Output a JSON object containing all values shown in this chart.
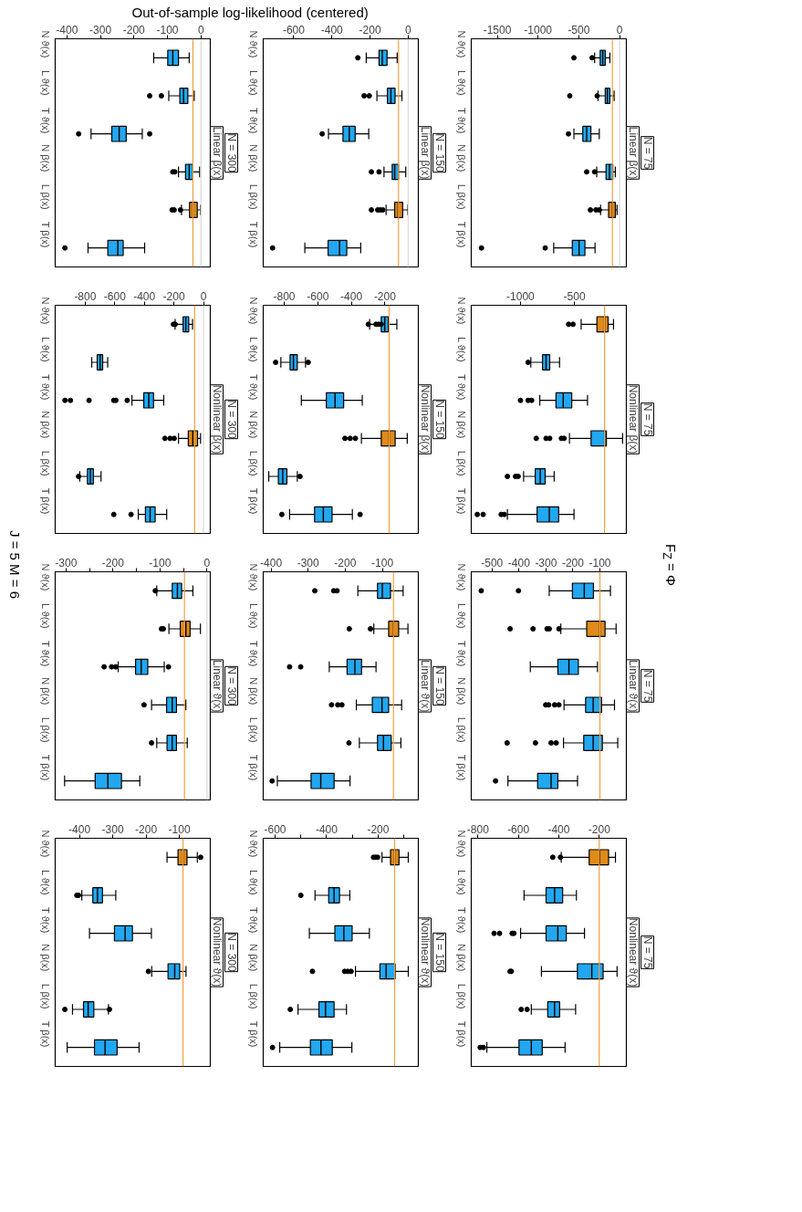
{
  "chart_data": [
    {
      "type": "box",
      "subtitle": "Linear β(x)",
      "xlabel": "Out-of-sample log-likelihood (centered)",
      "annotations": [
        "N = 300",
        "F$_{Z}$ = Φ",
        "J = 5 M = 6"
      ],
      "orientation": "horizontal",
      "categories": [
        "N ϑ(x)",
        "L ϑ(x)",
        "T ϑ(x)",
        "N β(x)",
        "L β(x)",
        "T β(x)"
      ],
      "colors": [
        "#22a7f0",
        "#22a7f0",
        "#22a7f0",
        "#22a7f0",
        "#e08a1a",
        "#22a7f0"
      ],
      "xlim": [
        -435,
        28
      ],
      "xticks": [
        -400,
        -300,
        -200,
        -100,
        0
      ],
      "grid": false,
      "boxes": [
        {
          "low": -141,
          "q1": -99,
          "median": -84,
          "q3": -67,
          "high": -35
        },
        {
          "low": -96,
          "q1": -63,
          "median": -52,
          "q3": -39,
          "high": -20,
          "outliers": [
            -153,
            -118
          ]
        },
        {
          "low": -328,
          "q1": -266,
          "median": -244,
          "q3": -223,
          "high": -175,
          "outliers": [
            -365,
            -153
          ]
        },
        {
          "low": -67,
          "q1": -46,
          "median": -35,
          "q3": -24,
          "high": -4,
          "outliers": [
            -84,
            -78
          ]
        },
        {
          "low": -58,
          "q1": -34,
          "median": -24,
          "q3": -11,
          "high": -1,
          "outliers": [
            -86,
            -80,
            -61
          ]
        },
        {
          "low": -337,
          "q1": -278,
          "median": -248,
          "q3": -232,
          "high": -168,
          "outliers": [
            -406
          ]
        }
      ],
      "ref_lines": [
        {
          "axis": "x",
          "value": 0,
          "color": "#d9d9d9"
        },
        {
          "axis": "x",
          "value": -24,
          "color": "#f0a040"
        }
      ]
    },
    {
      "type": "box",
      "annotations": [
        "N = 150"
      ],
      "subtitle": "Linear β(x)",
      "orientation": "horizontal",
      "categories": [
        "N ϑ(x)",
        "L ϑ(x)",
        "T ϑ(x)",
        "N β(x)",
        "L β(x)",
        "T β(x)"
      ],
      "colors": [
        "#22a7f0",
        "#22a7f0",
        "#22a7f0",
        "#22a7f0",
        "#e08a1a",
        "#22a7f0"
      ],
      "xlim": [
        -760,
        53
      ],
      "xticks": [
        -600,
        -400,
        -200,
        0
      ],
      "grid": false,
      "boxes": [
        {
          "low": -220,
          "q1": -153,
          "median": -136,
          "q3": -111,
          "high": -58,
          "outliers": [
            -264
          ]
        },
        {
          "low": -164,
          "q1": -109,
          "median": -91,
          "q3": -69,
          "high": -33,
          "outliers": [
            -231,
            -204
          ]
        },
        {
          "low": -418,
          "q1": -342,
          "median": -309,
          "q3": -278,
          "high": -207,
          "outliers": [
            -451
          ]
        },
        {
          "low": -127,
          "q1": -84,
          "median": -71,
          "q3": -51,
          "high": -13,
          "outliers": [
            -193,
            -153
          ]
        },
        {
          "low": -116,
          "q1": -71,
          "median": -53,
          "q3": -29,
          "high": -2,
          "outliers": [
            -193,
            -160,
            -147,
            -133
          ]
        },
        {
          "low": -542,
          "q1": -420,
          "median": -360,
          "q3": -322,
          "high": -249,
          "outliers": [
            -711
          ]
        }
      ],
      "ref_lines": [
        {
          "axis": "x",
          "value": 0,
          "color": "#d9d9d9"
        },
        {
          "axis": "x",
          "value": -51,
          "color": "#f0a040"
        }
      ]
    },
    {
      "type": "box",
      "annotations": [
        "N = 75"
      ],
      "subtitle": "Linear β(x)",
      "orientation": "horizontal",
      "categories": [
        "N ϑ(x)",
        "L ϑ(x)",
        "T ϑ(x)",
        "N β(x)",
        "L β(x)",
        "T β(x)"
      ],
      "colors": [
        "#22a7f0",
        "#22a7f0",
        "#22a7f0",
        "#22a7f0",
        "#e08a1a",
        "#22a7f0"
      ],
      "xlim": [
        -1819,
        83
      ],
      "xticks": [
        -1500,
        -1000,
        -500,
        0
      ],
      "grid": false,
      "boxes": [
        {
          "low": -306,
          "q1": -238,
          "median": -207,
          "q3": -176,
          "high": -119,
          "outliers": [
            -560,
            -337
          ]
        },
        {
          "low": -264,
          "q1": -176,
          "median": -150,
          "q3": -119,
          "high": -67,
          "outliers": [
            -611,
            -275
          ]
        },
        {
          "low": -560,
          "q1": -451,
          "median": -404,
          "q3": -352,
          "high": -249,
          "outliers": [
            -627
          ]
        },
        {
          "low": -280,
          "q1": -166,
          "median": -124,
          "q3": -83,
          "high": -52,
          "outliers": [
            -404,
            -306
          ]
        },
        {
          "low": -233,
          "q1": -135,
          "median": -88,
          "q3": -52,
          "high": -31,
          "outliers": [
            -358,
            -290,
            -249
          ]
        },
        {
          "low": -808,
          "q1": -580,
          "median": -497,
          "q3": -425,
          "high": -301,
          "outliers": [
            -1694,
            -912
          ]
        }
      ],
      "ref_lines": [
        {
          "axis": "x",
          "value": 0,
          "color": "#d9d9d9"
        },
        {
          "axis": "x",
          "value": -88,
          "color": "#f0a040"
        }
      ]
    },
    {
      "type": "box",
      "annotations": [
        "N = 300"
      ],
      "subtitle": "Nonlinear β(x)",
      "orientation": "horizontal",
      "categories": [
        "N ϑ(x)",
        "L ϑ(x)",
        "T ϑ(x)",
        "N β(x)",
        "L β(x)",
        "T β(x)"
      ],
      "colors": [
        "#22a7f0",
        "#22a7f0",
        "#22a7f0",
        "#e08a1a",
        "#22a7f0",
        "#22a7f0"
      ],
      "xlim": [
        -1003,
        46
      ],
      "xticks": [
        -800,
        -600,
        -400,
        -200,
        0
      ],
      "grid": false,
      "boxes": [
        {
          "low": -192,
          "q1": -138,
          "median": -120,
          "q3": -100,
          "high": -74,
          "outliers": [
            -203,
            -192
          ]
        },
        {
          "low": -756,
          "q1": -719,
          "median": -699,
          "q3": -682,
          "high": -648
        },
        {
          "low": -484,
          "q1": -404,
          "median": -370,
          "q3": -338,
          "high": -269,
          "outliers": [
            -937,
            -900,
            -774,
            -607,
            -593,
            -516
          ]
        },
        {
          "low": -169,
          "q1": -103,
          "median": -72,
          "q3": -40,
          "high": -20,
          "outliers": [
            -261,
            -226,
            -198
          ]
        },
        {
          "low": -837,
          "q1": -785,
          "median": -765,
          "q3": -745,
          "high": -693,
          "outliers": [
            -845
          ]
        },
        {
          "low": -441,
          "q1": -393,
          "median": -361,
          "q3": -327,
          "high": -249,
          "outliers": [
            -607,
            -490
          ]
        }
      ],
      "ref_lines": [
        {
          "axis": "x",
          "value": 0,
          "color": "#d9d9d9"
        },
        {
          "axis": "x",
          "value": -60,
          "color": "#f0a040"
        }
      ]
    },
    {
      "type": "box",
      "annotations": [
        "N = 150"
      ],
      "subtitle": "Nonlinear β(x)",
      "orientation": "horizontal",
      "categories": [
        "N ϑ(x)",
        "L ϑ(x)",
        "T ϑ(x)",
        "N β(x)",
        "L β(x)",
        "T β(x)"
      ],
      "colors": [
        "#22a7f0",
        "#22a7f0",
        "#22a7f0",
        "#e08a1a",
        "#22a7f0",
        "#22a7f0"
      ],
      "xlim": [
        -925,
        -1
      ],
      "xticks": [
        -800,
        -600,
        -400,
        -200
      ],
      "grid": false,
      "boxes": [
        {
          "low": -291,
          "q1": -222,
          "median": -201,
          "q3": -180,
          "high": -129,
          "outliers": [
            -299,
            -253,
            -237,
            -222
          ]
        },
        {
          "low": -820,
          "q1": -765,
          "median": -745,
          "q3": -722,
          "high": -673,
          "outliers": [
            -851,
            -657
          ]
        },
        {
          "low": -698,
          "q1": -549,
          "median": -497,
          "q3": -446,
          "high": -335
        },
        {
          "low": -340,
          "q1": -222,
          "median": -175,
          "q3": -139,
          "high": -67,
          "outliers": [
            -438,
            -407,
            -376
          ]
        },
        {
          "low": -892,
          "q1": -835,
          "median": -809,
          "q3": -784,
          "high": -722,
          "outliers": [
            -706
          ]
        },
        {
          "low": -768,
          "q1": -619,
          "median": -567,
          "q3": -515,
          "high": -394,
          "outliers": [
            -814,
            -348
          ]
        }
      ],
      "ref_lines": [
        {
          "axis": "x",
          "value": -175,
          "color": "#f0a040"
        }
      ]
    },
    {
      "type": "box",
      "annotations": [
        "N = 75"
      ],
      "subtitle": "Nonlinear β(x)",
      "orientation": "horizontal",
      "categories": [
        "N ϑ(x)",
        "L ϑ(x)",
        "T ϑ(x)",
        "N β(x)",
        "L β(x)",
        "T β(x)"
      ],
      "colors": [
        "#e08a1a",
        "#22a7f0",
        "#22a7f0",
        "#22a7f0",
        "#22a7f0",
        "#22a7f0"
      ],
      "xlim": [
        -1456,
        -19
      ],
      "xticks": [
        -1000,
        -500
      ],
      "grid": false,
      "boxes": [
        {
          "low": -438,
          "q1": -292,
          "median": -221,
          "q3": -188,
          "high": -138,
          "outliers": [
            -554,
            -513
          ]
        },
        {
          "low": -904,
          "q1": -796,
          "median": -763,
          "q3": -729,
          "high": -638,
          "outliers": [
            -929
          ]
        },
        {
          "low": -821,
          "q1": -671,
          "median": -604,
          "q3": -525,
          "high": -379,
          "outliers": [
            -1000,
            -929,
            -896
          ]
        },
        {
          "low": -546,
          "q1": -346,
          "median": -221,
          "q3": -204,
          "high": -54,
          "outliers": [
            -854,
            -763,
            -729,
            -621,
            -596
          ]
        },
        {
          "low": -971,
          "q1": -863,
          "median": -817,
          "q3": -771,
          "high": -688,
          "outliers": [
            -1121,
            -1046,
            -1021
          ]
        },
        {
          "low": -1121,
          "q1": -846,
          "median": -733,
          "q3": -646,
          "high": -504,
          "outliers": [
            -1400,
            -1346,
            -1179,
            -1150
          ]
        }
      ],
      "ref_lines": [
        {
          "axis": "x",
          "value": -221,
          "color": "#f0a040"
        }
      ]
    },
    {
      "type": "box",
      "annotations": [
        "N = 300"
      ],
      "subtitle": "Linear ϑ(x)",
      "orientation": "horizontal",
      "categories": [
        "N ϑ(x)",
        "L ϑ(x)",
        "T ϑ(x)",
        "N β(x)",
        "L β(x)",
        "T β(x)"
      ],
      "colors": [
        "#22a7f0",
        "#e08a1a",
        "#22a7f0",
        "#22a7f0",
        "#22a7f0",
        "#22a7f0"
      ],
      "xlim": [
        -323,
        7
      ],
      "xticks": [
        -300,
        {
          "value": -250,
          "label": null
        },
        -200,
        {
          "value": -150,
          "label": null
        },
        -100,
        {
          "value": -50,
          "label": null
        },
        0
      ],
      "grid": false,
      "boxes": [
        {
          "low": -107,
          "q1": -74,
          "median": -63,
          "q3": -54,
          "high": -30,
          "outliers": [
            -110
          ]
        },
        {
          "low": -81,
          "q1": -57,
          "median": -45,
          "q3": -36,
          "high": -14,
          "outliers": [
            -97,
            -93
          ]
        },
        {
          "low": -189,
          "q1": -152,
          "median": -140,
          "q3": -126,
          "high": -91,
          "outliers": [
            -219,
            -203,
            -194,
            -82
          ]
        },
        {
          "low": -118,
          "q1": -86,
          "median": -74,
          "q3": -65,
          "high": -45,
          "outliers": [
            -134
          ]
        },
        {
          "low": -107,
          "q1": -85,
          "median": -74,
          "q3": -65,
          "high": -42,
          "outliers": [
            -118
          ]
        },
        {
          "low": -303,
          "q1": -238,
          "median": -211,
          "q3": -182,
          "high": -143
        }
      ],
      "ref_lines": [
        {
          "axis": "x",
          "value": 0,
          "color": "#d9d9d9"
        },
        {
          "axis": "x",
          "value": -48,
          "color": "#f0a040"
        }
      ]
    },
    {
      "type": "box",
      "annotations": [
        "N = 150"
      ],
      "subtitle": "Linear ϑ(x)",
      "orientation": "horizontal",
      "categories": [
        "N ϑ(x)",
        "L ϑ(x)",
        "T ϑ(x)",
        "N β(x)",
        "L β(x)",
        "T β(x)"
      ],
      "colors": [
        "#22a7f0",
        "#e08a1a",
        "#22a7f0",
        "#22a7f0",
        "#22a7f0",
        "#22a7f0"
      ],
      "xlim": [
        -421,
        -3
      ],
      "xticks": [
        -400,
        -300,
        -200,
        -100
      ],
      "grid": false,
      "boxes": [
        {
          "low": -166,
          "q1": -113,
          "median": -100,
          "q3": -78,
          "high": -44,
          "outliers": [
            -282,
            -231,
            -222
          ]
        },
        {
          "low": -123,
          "q1": -83,
          "median": -70,
          "q3": -56,
          "high": -31,
          "outliers": [
            -189,
            -132
          ]
        },
        {
          "low": -243,
          "q1": -195,
          "median": -174,
          "q3": -156,
          "high": -117,
          "outliers": [
            -350,
            -320
          ]
        },
        {
          "low": -170,
          "q1": -127,
          "median": -101,
          "q3": -83,
          "high": -48,
          "outliers": [
            -237,
            -220,
            -209
          ]
        },
        {
          "low": -162,
          "q1": -113,
          "median": -97,
          "q3": -76,
          "high": -50,
          "outliers": [
            -190
          ]
        },
        {
          "low": -383,
          "q1": -292,
          "median": -266,
          "q3": -230,
          "high": -187,
          "outliers": [
            -397
          ]
        }
      ],
      "ref_lines": [
        {
          "axis": "x",
          "value": -70,
          "color": "#f0a040"
        }
      ]
    },
    {
      "type": "box",
      "annotations": [
        "N = 75"
      ],
      "subtitle": "Linear ϑ(x)",
      "orientation": "horizontal",
      "categories": [
        "N ϑ(x)",
        "L ϑ(x)",
        "T ϑ(x)",
        "N β(x)",
        "L β(x)",
        "T β(x)"
      ],
      "colors": [
        "#22a7f0",
        "#e08a1a",
        "#22a7f0",
        "#22a7f0",
        "#22a7f0",
        "#22a7f0"
      ],
      "xlim": [
        -577,
        -2
      ],
      "xticks": [
        -500,
        -400,
        -300,
        -200,
        -100
      ],
      "grid": false,
      "boxes": [
        {
          "low": -288,
          "q1": -202,
          "median": -158,
          "q3": -124,
          "high": -61,
          "outliers": [
            -540,
            -402
          ]
        },
        {
          "low": -245,
          "q1": -149,
          "median": -100,
          "q3": -81,
          "high": -40,
          "outliers": [
            -433,
            -348,
            -296,
            -288,
            -252
          ]
        },
        {
          "low": -358,
          "q1": -256,
          "median": -215,
          "q3": -180,
          "high": -109
        },
        {
          "low": -233,
          "q1": -153,
          "median": -125,
          "q3": -94,
          "high": -46,
          "outliers": [
            -301,
            -290,
            -268,
            -252
          ]
        },
        {
          "low": -235,
          "q1": -160,
          "median": -125,
          "q3": -91,
          "high": -34,
          "outliers": [
            -444,
            -339,
            -281,
            -262
          ]
        },
        {
          "low": -441,
          "q1": -331,
          "median": -281,
          "q3": -256,
          "high": -183,
          "outliers": [
            -487
          ]
        }
      ],
      "ref_lines": [
        {
          "axis": "x",
          "value": -100,
          "color": "#f0a040"
        }
      ]
    },
    {
      "type": "box",
      "annotations": [
        "N = 300"
      ],
      "subtitle": "Nonlinear ϑ(x)",
      "orientation": "horizontal",
      "categories": [
        "N ϑ(x)",
        "L ϑ(x)",
        "T ϑ(x)",
        "N β(x)",
        "L β(x)",
        "T β(x)"
      ],
      "colors": [
        "#e08a1a",
        "#22a7f0",
        "#22a7f0",
        "#22a7f0",
        "#22a7f0",
        "#22a7f0"
      ],
      "xlim": [
        -473,
        -7
      ],
      "xticks": [
        -400,
        -300,
        -200,
        -100
      ],
      "grid": false,
      "boxes": [
        {
          "low": -137,
          "q1": -104,
          "median": -89,
          "q3": -77,
          "high": -46,
          "outliers": [
            -36
          ]
        },
        {
          "low": -393,
          "q1": -360,
          "median": -346,
          "q3": -331,
          "high": -291,
          "outliers": [
            -408,
            -403
          ]
        },
        {
          "low": -370,
          "q1": -295,
          "median": -263,
          "q3": -241,
          "high": -184
        },
        {
          "low": -183,
          "q1": -134,
          "median": -114,
          "q3": -99,
          "high": -80,
          "outliers": [
            -193
          ]
        },
        {
          "low": -421,
          "q1": -388,
          "median": -374,
          "q3": -357,
          "high": -313,
          "outliers": [
            -444,
            -310
          ]
        },
        {
          "low": -437,
          "q1": -355,
          "median": -323,
          "q3": -287,
          "high": -221
        }
      ],
      "ref_lines": [
        {
          "axis": "x",
          "value": -89,
          "color": "#f0a040"
        }
      ]
    },
    {
      "type": "box",
      "annotations": [
        "N = 150"
      ],
      "subtitle": "Nonlinear ϑ(x)",
      "orientation": "horizontal",
      "categories": [
        "N ϑ(x)",
        "L ϑ(x)",
        "T ϑ(x)",
        "N β(x)",
        "L β(x)",
        "T β(x)"
      ],
      "colors": [
        "#e08a1a",
        "#22a7f0",
        "#22a7f0",
        "#22a7f0",
        "#22a7f0",
        "#22a7f0"
      ],
      "xlim": [
        -646,
        -44
      ],
      "xticks": [
        -600,
        {
          "value": -500,
          "label": null
        },
        -400,
        {
          "value": -300,
          "label": null
        },
        -200,
        {
          "value": -100,
          "label": null
        }
      ],
      "grid": false,
      "boxes": [
        {
          "low": -185,
          "q1": -152,
          "median": -136,
          "q3": -119,
          "high": -83,
          "outliers": [
            -218,
            -210,
            -202
          ]
        },
        {
          "low": -445,
          "q1": -392,
          "median": -371,
          "q3": -350,
          "high": -310,
          "outliers": [
            -500
          ]
        },
        {
          "low": -467,
          "q1": -368,
          "median": -333,
          "q3": -301,
          "high": -234
        },
        {
          "low": -288,
          "q1": -193,
          "median": -169,
          "q3": -134,
          "high": -83,
          "outliers": [
            -455,
            -330,
            -318,
            -305
          ]
        },
        {
          "low": -511,
          "q1": -430,
          "median": -404,
          "q3": -371,
          "high": -323,
          "outliers": [
            -541
          ]
        },
        {
          "low": -582,
          "q1": -463,
          "median": -422,
          "q3": -378,
          "high": -302,
          "outliers": [
            -610
          ]
        }
      ],
      "ref_lines": [
        {
          "axis": "x",
          "value": -136,
          "color": "#f0a040"
        }
      ]
    },
    {
      "type": "box",
      "annotations": [
        "N = 75"
      ],
      "subtitle": "Nonlinear ϑ(x)",
      "orientation": "horizontal",
      "categories": [
        "N ϑ(x)",
        "L ϑ(x)",
        "T ϑ(x)",
        "N β(x)",
        "L β(x)",
        "T β(x)"
      ],
      "colors": [
        "#e08a1a",
        "#22a7f0",
        "#22a7f0",
        "#22a7f0",
        "#22a7f0",
        "#22a7f0"
      ],
      "xlim": [
        -833,
        -66
      ],
      "xticks": [
        -800,
        -600,
        -400,
        -200
      ],
      "grid": false,
      "boxes": [
        {
          "low": -388,
          "q1": -250,
          "median": -198,
          "q3": -154,
          "high": -120,
          "outliers": [
            -430,
            -392
          ]
        },
        {
          "low": -572,
          "q1": -463,
          "median": -421,
          "q3": -381,
          "high": -313
        },
        {
          "low": -589,
          "q1": -463,
          "median": -405,
          "q3": -363,
          "high": -273,
          "outliers": [
            -720,
            -693,
            -631,
            -622
          ]
        },
        {
          "low": -486,
          "q1": -308,
          "median": -237,
          "q3": -181,
          "high": -112,
          "outliers": [
            -641,
            -635
          ]
        },
        {
          "low": -536,
          "q1": -455,
          "median": -421,
          "q3": -396,
          "high": -317,
          "outliers": [
            -586,
            -557
          ]
        },
        {
          "low": -756,
          "q1": -597,
          "median": -536,
          "q3": -482,
          "high": -369,
          "outliers": [
            -789,
            -773
          ]
        }
      ],
      "ref_lines": [
        {
          "axis": "x",
          "value": -200,
          "color": "#f0a040"
        }
      ]
    }
  ]
}
